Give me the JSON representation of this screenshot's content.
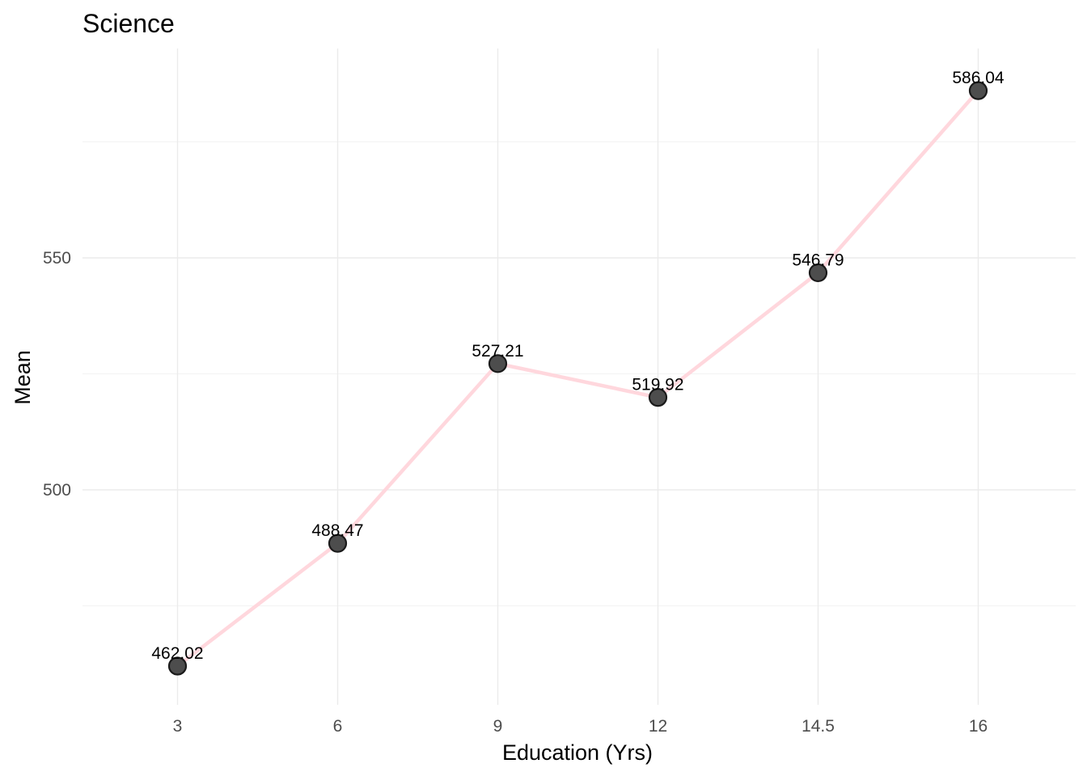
{
  "chart_data": {
    "type": "line",
    "title": "Science",
    "xlabel": "Education (Yrs)",
    "ylabel": "Mean",
    "categories": [
      "3",
      "6",
      "9",
      "12",
      "14.5",
      "16"
    ],
    "values": [
      462.02,
      488.47,
      527.21,
      519.92,
      546.79,
      586.04
    ],
    "value_labels": [
      "462.02",
      "488.47",
      "527.21",
      "519.92",
      "546.79",
      "586.04"
    ],
    "yticks": [
      500,
      550
    ],
    "ytick_labels": [
      "500",
      "550"
    ],
    "ylim": [
      455,
      597
    ],
    "grid": true,
    "legend": "none",
    "colors": {
      "line": "#ffd7dd",
      "point_fill": "#4d4d4d",
      "point_stroke": "#1a1a1a"
    }
  }
}
